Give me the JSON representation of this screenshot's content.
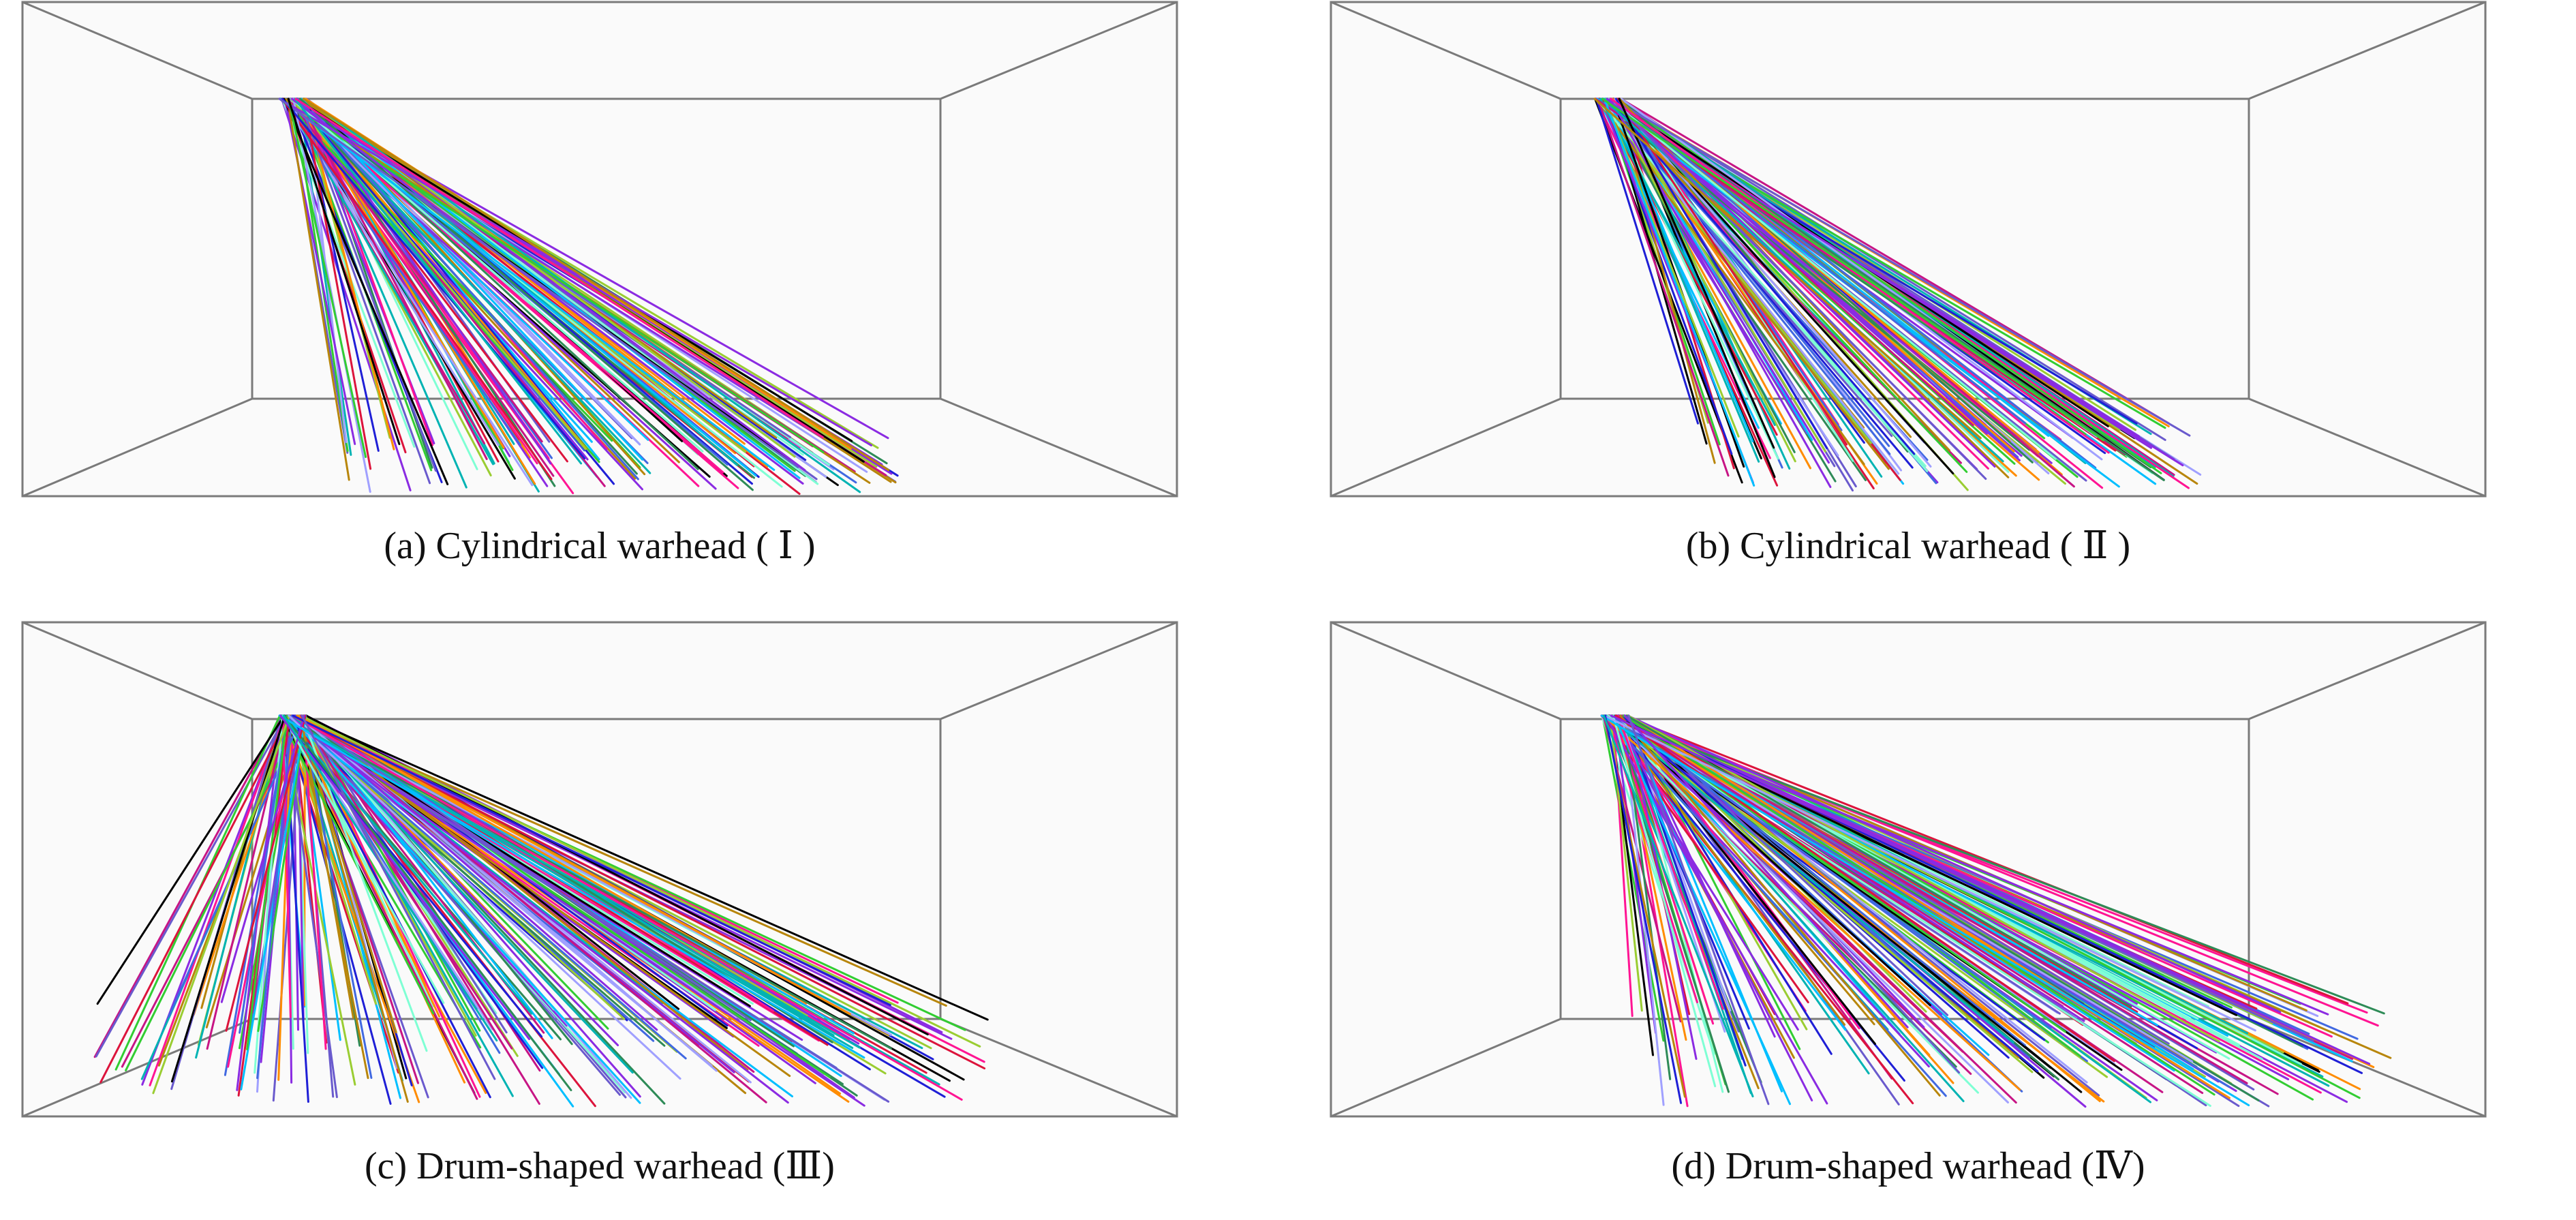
{
  "panels": [
    {
      "id": "a",
      "caption": "(a) Cylindrical warhead ( Ⅰ )"
    },
    {
      "id": "b",
      "caption": "(b) Cylindrical warhead ( Ⅱ )"
    },
    {
      "id": "c",
      "caption": "(c) Drum-shaped warhead (Ⅲ)"
    },
    {
      "id": "d",
      "caption": "(d) Drum-shaped warhead (Ⅳ)"
    }
  ],
  "colors": {
    "box": "#7a7a7a",
    "background": "#fafafa",
    "trajectories": [
      "#8b2be2",
      "#1f1fd6",
      "#00b3b3",
      "#6a5acd",
      "#ff1493",
      "#32cd32",
      "#000000",
      "#b8860b",
      "#ff8c00",
      "#9acd32",
      "#c71585",
      "#4169e1",
      "#2e8b57",
      "#dc143c",
      "#7fffd4",
      "#a0a0ff",
      "#8a2be2",
      "#00bfff"
    ]
  }
}
